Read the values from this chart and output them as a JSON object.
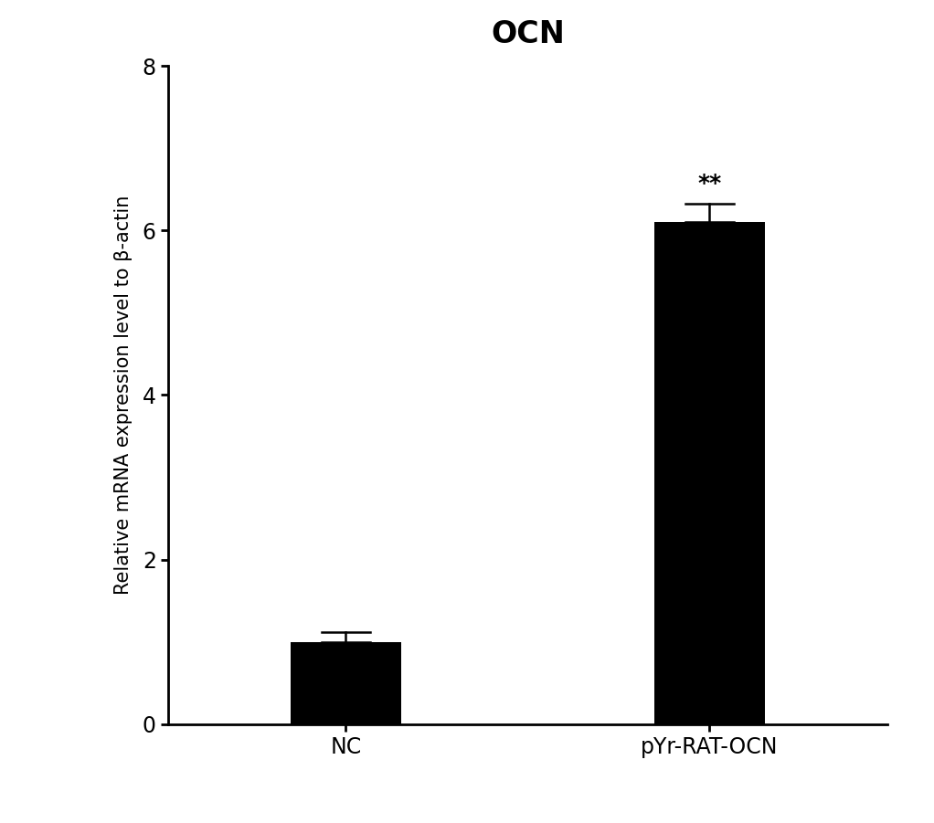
{
  "title": "OCN",
  "ylabel": "Relative mRNA expression level to β-actin",
  "categories": [
    "NC",
    "pYr-RAT-OCN"
  ],
  "values": [
    1.0,
    6.1
  ],
  "errors": [
    0.12,
    0.22
  ],
  "bar_color": "#000000",
  "bar_width": 0.55,
  "ylim": [
    0,
    8
  ],
  "yticks": [
    0,
    2,
    4,
    6,
    8
  ],
  "significance": [
    "",
    "**"
  ],
  "title_fontsize": 24,
  "label_fontsize": 15,
  "tick_fontsize": 17,
  "sig_fontsize": 18,
  "background_color": "#ffffff",
  "bar_positions": [
    1.0,
    2.8
  ]
}
